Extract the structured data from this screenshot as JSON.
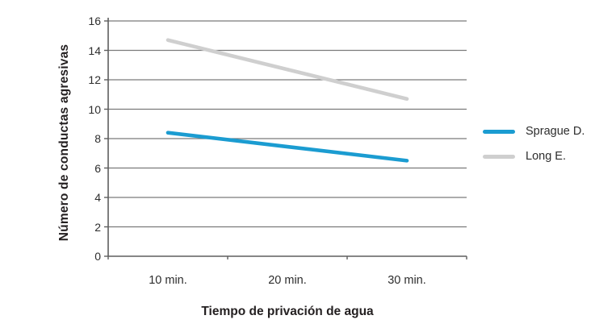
{
  "figure": {
    "background": "#ffffff"
  },
  "chart_data": {
    "type": "line",
    "title": "",
    "xlabel": "Tiempo de privación de agua",
    "ylabel": "Número de conductas agresivas",
    "categories": [
      "10 min.",
      "20 min.",
      "30 min."
    ],
    "series": [
      {
        "name": "Sprague D.",
        "values": [
          8.4,
          7.45,
          6.5
        ],
        "color": "#1b9cd1"
      },
      {
        "name": "Long E.",
        "values": [
          14.7,
          12.7,
          10.7
        ],
        "color": "#cfcfcf"
      }
    ],
    "ylim": [
      0,
      16
    ],
    "yticks": [
      0,
      2,
      4,
      6,
      8,
      10,
      12,
      14,
      16
    ],
    "grid": true,
    "legend_position": "right"
  },
  "colors": {
    "gridline": "#7a7a7a",
    "axis": "#5e5e5e",
    "tick_text": "#2d2d2d",
    "title_text": "#231f20"
  }
}
